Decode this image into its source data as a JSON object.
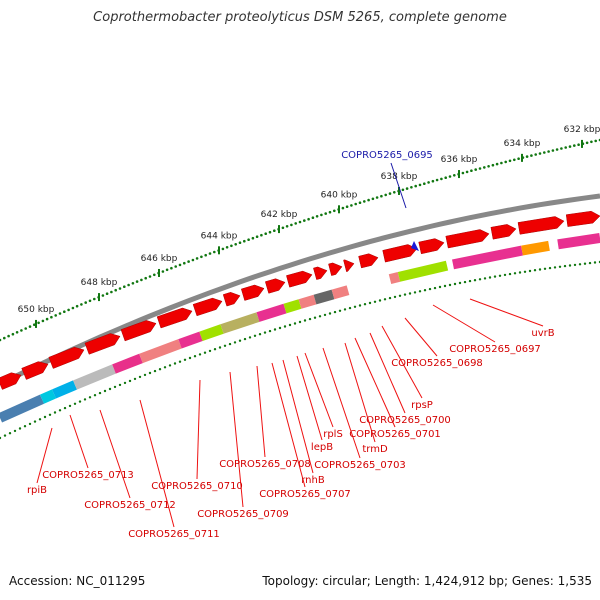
{
  "title": "Coprothermobacter proteolyticus DSM 5265, complete genome",
  "footer": {
    "accession": "Accession: NC_011295",
    "summary": "Topology: circular; Length: 1,424,912 bp; Genes: 1,535"
  },
  "ticks": [
    "632 kbp",
    "634 kbp",
    "636 kbp",
    "638 kbp",
    "640 kbp",
    "642 kbp",
    "644 kbp",
    "646 kbp",
    "648 kbp",
    "650 kbp"
  ],
  "highlight_label": "COPRO5265_0695",
  "gene_labels": [
    "uvrB",
    "COPRO5265_0697",
    "COPRO5265_0698",
    "rpsP",
    "COPRO5265_0700",
    "COPRO5265_0701",
    "trmD",
    "COPRO5265_0703",
    "rplS",
    "lepB",
    "rnhB",
    "COPRO5265_0707",
    "COPRO5265_0708",
    "COPRO5265_0709",
    "COPRO5265_0710",
    "COPRO5265_0711",
    "COPRO5265_0712",
    "COPRO5265_0713",
    "rpiB"
  ],
  "colors": {
    "gene_forward": "#ee0000",
    "backbone": "#888888",
    "tick_dots": "#117711",
    "label": "#d40000",
    "highlight": "#1a1aa8"
  }
}
